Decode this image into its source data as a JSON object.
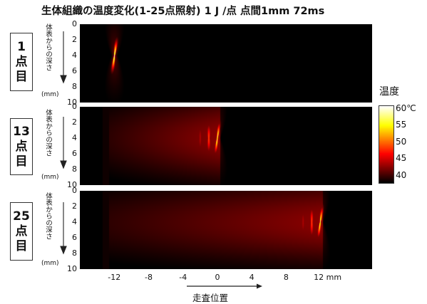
{
  "title": "生体組織の温度変化(1-25点照射) 1 J /点 点間1mm 72ms",
  "panels": [
    {
      "label": [
        "1",
        "点",
        "目"
      ]
    },
    {
      "label": [
        "13",
        "点",
        "目"
      ]
    },
    {
      "label": [
        "25",
        "点",
        "目"
      ]
    }
  ],
  "depth_label": "体表からの深さ",
  "depth_unit": "(mm)",
  "colorbar": {
    "title": "温度",
    "ticks": [
      "60℃",
      "55",
      "50",
      "45",
      "40"
    ],
    "colormap": "hot",
    "range": [
      38,
      61
    ]
  },
  "x_axis": {
    "ticks": [
      "-12",
      "-8",
      "-4",
      "0",
      "4",
      "8",
      "12 mm"
    ],
    "label": "走査位置"
  },
  "chart_data": [
    {
      "type": "heatmap",
      "x_range": [
        -16,
        18
      ],
      "y_range": [
        0,
        10
      ],
      "y_ticks": [
        0,
        2,
        4,
        6,
        8,
        10
      ],
      "x_ticks": [
        -12,
        -8,
        -4,
        0,
        4,
        8,
        12
      ],
      "irradiation_points": [
        -12
      ],
      "peak": {
        "x": -12,
        "y": 4,
        "temp": 60
      }
    },
    {
      "type": "heatmap",
      "x_range": [
        -16,
        18
      ],
      "y_range": [
        0,
        10
      ],
      "y_ticks": [
        0,
        2,
        4,
        6,
        8,
        10
      ],
      "x_ticks": [
        -12,
        -8,
        -4,
        0,
        4,
        8,
        12
      ],
      "irradiation_points": [
        -12,
        -11,
        -10,
        -9,
        -8,
        -7,
        -6,
        -5,
        -4,
        -3,
        -2,
        -1,
        0
      ],
      "peak": {
        "x": 0,
        "y": 4,
        "temp": 58
      }
    },
    {
      "type": "heatmap",
      "x_range": [
        -16,
        18
      ],
      "y_range": [
        0,
        10
      ],
      "y_ticks": [
        0,
        2,
        4,
        6,
        8,
        10
      ],
      "x_ticks": [
        -12,
        -8,
        -4,
        0,
        4,
        8,
        12
      ],
      "irradiation_points": [
        -12,
        -11,
        -10,
        -9,
        -8,
        -7,
        -6,
        -5,
        -4,
        -3,
        -2,
        -1,
        0,
        1,
        2,
        3,
        4,
        5,
        6,
        7,
        8,
        9,
        10,
        11,
        12
      ],
      "peak": {
        "x": 12,
        "y": 4,
        "temp": 58
      }
    }
  ]
}
